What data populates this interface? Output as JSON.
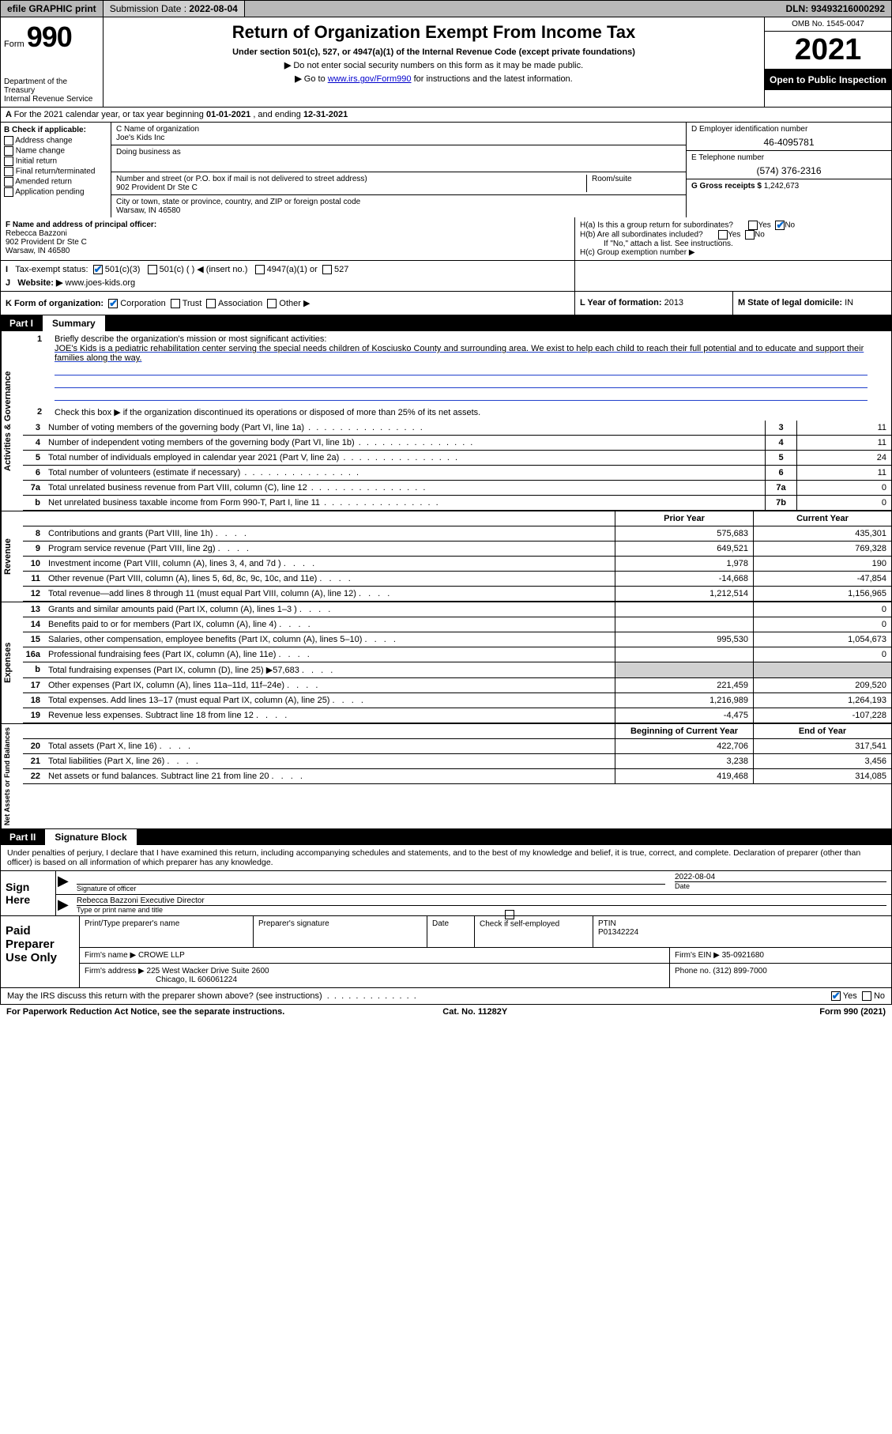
{
  "topbar": {
    "efile": "efile GRAPHIC print",
    "submission_label": "Submission Date :",
    "submission_date": "2022-08-04",
    "dln_label": "DLN:",
    "dln": "93493216000292"
  },
  "header": {
    "form_word": "Form",
    "form_number": "990",
    "dept": "Department of the Treasury",
    "irs": "Internal Revenue Service",
    "title": "Return of Organization Exempt From Income Tax",
    "subtitle": "Under section 501(c), 527, or 4947(a)(1) of the Internal Revenue Code (except private foundations)",
    "note1": "Do not enter social security numbers on this form as it may be made public.",
    "note2_pre": "Go to ",
    "note2_link": "www.irs.gov/Form990",
    "note2_post": " for instructions and the latest information.",
    "omb": "OMB No. 1545-0047",
    "year": "2021",
    "open": "Open to Public Inspection"
  },
  "row_a": {
    "text_pre": "For the 2021 calendar year, or tax year beginning ",
    "begin": "01-01-2021",
    "mid": " , and ending ",
    "end": "12-31-2021"
  },
  "col_b": {
    "hdr": "B Check if applicable:",
    "opts": [
      "Address change",
      "Name change",
      "Initial return",
      "Final return/terminated",
      "Amended return",
      "Application pending"
    ]
  },
  "col_c": {
    "name_lbl": "C Name of organization",
    "name": "Joe's Kids Inc",
    "dba_lbl": "Doing business as",
    "dba": "",
    "street_lbl": "Number and street (or P.O. box if mail is not delivered to street address)",
    "street": "902 Provident Dr Ste C",
    "room_lbl": "Room/suite",
    "city_lbl": "City or town, state or province, country, and ZIP or foreign postal code",
    "city": "Warsaw, IN  46580"
  },
  "col_d": {
    "ein_lbl": "D Employer identification number",
    "ein": "46-4095781",
    "phone_lbl": "E Telephone number",
    "phone": "(574) 376-2316",
    "gross_lbl": "G Gross receipts $",
    "gross": "1,242,673"
  },
  "row_f": {
    "lbl": "F  Name and address of principal officer:",
    "name": "Rebecca Bazzoni",
    "addr1": "902 Provident Dr Ste C",
    "addr2": "Warsaw, IN  46580"
  },
  "row_h": {
    "a": "H(a)  Is this a group return for subordinates?",
    "b": "H(b)  Are all subordinates included?",
    "b_note": "If \"No,\" attach a list. See instructions.",
    "c": "H(c)  Group exemption number ▶",
    "yes": "Yes",
    "no": "No"
  },
  "row_i": {
    "lbl": "Tax-exempt status:",
    "o1": "501(c)(3)",
    "o2": "501(c) (   ) ◀ (insert no.)",
    "o3": "4947(a)(1) or",
    "o4": "527"
  },
  "row_j": {
    "lbl": "Website: ▶",
    "val": "www.joes-kids.org"
  },
  "row_k": {
    "lbl": "K Form of organization:",
    "o1": "Corporation",
    "o2": "Trust",
    "o3": "Association",
    "o4": "Other ▶",
    "l_lbl": "L Year of formation:",
    "l_val": "2013",
    "m_lbl": "M State of legal domicile:",
    "m_val": "IN"
  },
  "part1": {
    "num": "Part I",
    "title": "Summary",
    "q1_lbl": "Briefly describe the organization's mission or most significant activities:",
    "q1_val": "JOE's Kids is a pediatric rehabilitation center serving the special needs children of Kosciusko County and surrounding area. We exist to help each child to reach their full potential and to educate and support their families along the way.",
    "q2": "Check this box ▶       if the organization discontinued its operations or disposed of more than 25% of its net assets.",
    "sec_gov": "Activities & Governance",
    "sec_rev": "Revenue",
    "sec_exp": "Expenses",
    "sec_net": "Net Assets or Fund Balances",
    "hdr_prior": "Prior Year",
    "hdr_curr": "Current Year",
    "hdr_boy": "Beginning of Current Year",
    "hdr_eoy": "End of Year",
    "lines_gov": [
      {
        "n": "3",
        "t": "Number of voting members of the governing body (Part VI, line 1a)",
        "bn": "3",
        "v": "11"
      },
      {
        "n": "4",
        "t": "Number of independent voting members of the governing body (Part VI, line 1b)",
        "bn": "4",
        "v": "11"
      },
      {
        "n": "5",
        "t": "Total number of individuals employed in calendar year 2021 (Part V, line 2a)",
        "bn": "5",
        "v": "24"
      },
      {
        "n": "6",
        "t": "Total number of volunteers (estimate if necessary)",
        "bn": "6",
        "v": "11"
      },
      {
        "n": "7a",
        "t": "Total unrelated business revenue from Part VIII, column (C), line 12",
        "bn": "7a",
        "v": "0"
      },
      {
        "n": "b",
        "t": "Net unrelated business taxable income from Form 990-T, Part I, line 11",
        "bn": "7b",
        "v": "0"
      }
    ],
    "lines_rev": [
      {
        "n": "8",
        "t": "Contributions and grants (Part VIII, line 1h)",
        "p": "575,683",
        "c": "435,301"
      },
      {
        "n": "9",
        "t": "Program service revenue (Part VIII, line 2g)",
        "p": "649,521",
        "c": "769,328"
      },
      {
        "n": "10",
        "t": "Investment income (Part VIII, column (A), lines 3, 4, and 7d )",
        "p": "1,978",
        "c": "190"
      },
      {
        "n": "11",
        "t": "Other revenue (Part VIII, column (A), lines 5, 6d, 8c, 9c, 10c, and 11e)",
        "p": "-14,668",
        "c": "-47,854"
      },
      {
        "n": "12",
        "t": "Total revenue—add lines 8 through 11 (must equal Part VIII, column (A), line 12)",
        "p": "1,212,514",
        "c": "1,156,965"
      }
    ],
    "lines_exp": [
      {
        "n": "13",
        "t": "Grants and similar amounts paid (Part IX, column (A), lines 1–3 )",
        "p": "",
        "c": "0"
      },
      {
        "n": "14",
        "t": "Benefits paid to or for members (Part IX, column (A), line 4)",
        "p": "",
        "c": "0"
      },
      {
        "n": "15",
        "t": "Salaries, other compensation, employee benefits (Part IX, column (A), lines 5–10)",
        "p": "995,530",
        "c": "1,054,673"
      },
      {
        "n": "16a",
        "t": "Professional fundraising fees (Part IX, column (A), line 11e)",
        "p": "",
        "c": "0"
      },
      {
        "n": "b",
        "t": "Total fundraising expenses (Part IX, column (D), line 25) ▶57,683",
        "p": "GREY",
        "c": "GREY"
      },
      {
        "n": "17",
        "t": "Other expenses (Part IX, column (A), lines 11a–11d, 11f–24e)",
        "p": "221,459",
        "c": "209,520"
      },
      {
        "n": "18",
        "t": "Total expenses. Add lines 13–17 (must equal Part IX, column (A), line 25)",
        "p": "1,216,989",
        "c": "1,264,193"
      },
      {
        "n": "19",
        "t": "Revenue less expenses. Subtract line 18 from line 12",
        "p": "-4,475",
        "c": "-107,228"
      }
    ],
    "lines_net": [
      {
        "n": "20",
        "t": "Total assets (Part X, line 16)",
        "p": "422,706",
        "c": "317,541"
      },
      {
        "n": "21",
        "t": "Total liabilities (Part X, line 26)",
        "p": "3,238",
        "c": "3,456"
      },
      {
        "n": "22",
        "t": "Net assets or fund balances. Subtract line 21 from line 20",
        "p": "419,468",
        "c": "314,085"
      }
    ]
  },
  "part2": {
    "num": "Part II",
    "title": "Signature Block",
    "declare": "Under penalties of perjury, I declare that I have examined this return, including accompanying schedules and statements, and to the best of my knowledge and belief, it is true, correct, and complete. Declaration of preparer (other than officer) is based on all information of which preparer has any knowledge.",
    "sign_here": "Sign Here",
    "sig_officer_lbl": "Signature of officer",
    "date_lbl": "Date",
    "sig_date": "2022-08-04",
    "name_title": "Rebecca Bazzoni  Executive Director",
    "name_title_lbl": "Type or print name and title",
    "paid": "Paid Preparer Use Only",
    "prep_name_lbl": "Print/Type preparer's name",
    "prep_sig_lbl": "Preparer's signature",
    "prep_date_lbl": "Date",
    "check_if": "Check        if self-employed",
    "ptin_lbl": "PTIN",
    "ptin": "P01342224",
    "firm_name_lbl": "Firm's name    ▶",
    "firm_name": "CROWE LLP",
    "firm_ein_lbl": "Firm's EIN ▶",
    "firm_ein": "35-0921680",
    "firm_addr_lbl": "Firm's address ▶",
    "firm_addr1": "225 West Wacker Drive Suite 2600",
    "firm_addr2": "Chicago, IL  606061224",
    "firm_phone_lbl": "Phone no.",
    "firm_phone": "(312) 899-7000",
    "discuss": "May the IRS discuss this return with the preparer shown above? (see instructions)",
    "yes": "Yes",
    "no": "No"
  },
  "footer": {
    "left": "For Paperwork Reduction Act Notice, see the separate instructions.",
    "mid": "Cat. No. 11282Y",
    "right": "Form 990 (2021)"
  }
}
